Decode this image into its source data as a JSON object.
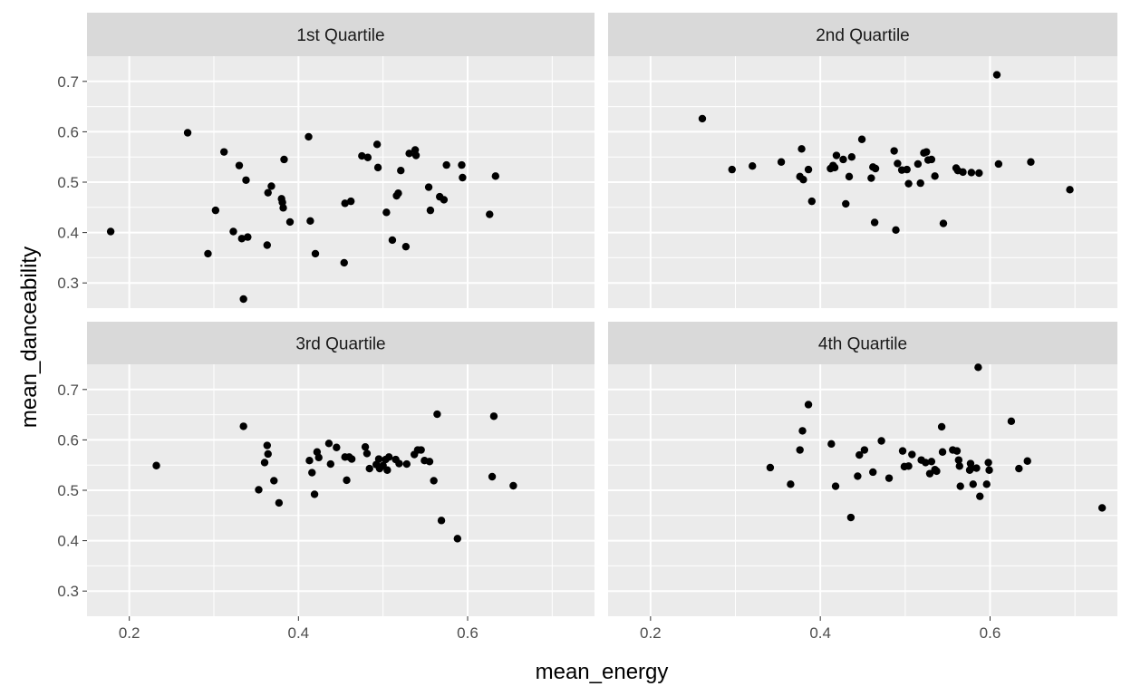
{
  "chart_data": {
    "type": "scatter",
    "facet_layout": "2x2",
    "xlabel": "mean_energy",
    "ylabel": "mean_danceability",
    "xlim": [
      0.15,
      0.75
    ],
    "ylim": [
      0.25,
      0.75
    ],
    "x_ticks": [
      0.2,
      0.4,
      0.6
    ],
    "y_ticks": [
      0.3,
      0.4,
      0.5,
      0.6,
      0.7
    ],
    "grid": true,
    "point_color": "#000000",
    "panel_background": "#ebebeb",
    "strip_background": "#d9d9d9",
    "panels": [
      {
        "title": "1st Quartile",
        "points": [
          [
            0.178,
            0.402
          ],
          [
            0.269,
            0.598
          ],
          [
            0.293,
            0.358
          ],
          [
            0.302,
            0.444
          ],
          [
            0.312,
            0.56
          ],
          [
            0.323,
            0.402
          ],
          [
            0.33,
            0.533
          ],
          [
            0.333,
            0.388
          ],
          [
            0.335,
            0.268
          ],
          [
            0.338,
            0.504
          ],
          [
            0.34,
            0.391
          ],
          [
            0.363,
            0.375
          ],
          [
            0.364,
            0.479
          ],
          [
            0.368,
            0.492
          ],
          [
            0.38,
            0.467
          ],
          [
            0.381,
            0.46
          ],
          [
            0.382,
            0.449
          ],
          [
            0.383,
            0.545
          ],
          [
            0.39,
            0.421
          ],
          [
            0.412,
            0.59
          ],
          [
            0.414,
            0.423
          ],
          [
            0.42,
            0.358
          ],
          [
            0.454,
            0.34
          ],
          [
            0.455,
            0.458
          ],
          [
            0.462,
            0.462
          ],
          [
            0.475,
            0.552
          ],
          [
            0.482,
            0.549
          ],
          [
            0.493,
            0.575
          ],
          [
            0.494,
            0.529
          ],
          [
            0.504,
            0.44
          ],
          [
            0.511,
            0.385
          ],
          [
            0.516,
            0.473
          ],
          [
            0.518,
            0.478
          ],
          [
            0.521,
            0.523
          ],
          [
            0.527,
            0.372
          ],
          [
            0.531,
            0.557
          ],
          [
            0.538,
            0.564
          ],
          [
            0.539,
            0.553
          ],
          [
            0.554,
            0.49
          ],
          [
            0.556,
            0.444
          ],
          [
            0.567,
            0.471
          ],
          [
            0.572,
            0.465
          ],
          [
            0.575,
            0.534
          ],
          [
            0.593,
            0.534
          ],
          [
            0.594,
            0.509
          ],
          [
            0.626,
            0.436
          ],
          [
            0.633,
            0.512
          ]
        ]
      },
      {
        "title": "2nd Quartile",
        "points": [
          [
            0.261,
            0.626
          ],
          [
            0.296,
            0.525
          ],
          [
            0.32,
            0.532
          ],
          [
            0.354,
            0.54
          ],
          [
            0.376,
            0.511
          ],
          [
            0.378,
            0.566
          ],
          [
            0.38,
            0.505
          ],
          [
            0.386,
            0.525
          ],
          [
            0.39,
            0.462
          ],
          [
            0.412,
            0.527
          ],
          [
            0.415,
            0.533
          ],
          [
            0.417,
            0.529
          ],
          [
            0.419,
            0.553
          ],
          [
            0.427,
            0.545
          ],
          [
            0.43,
            0.457
          ],
          [
            0.434,
            0.511
          ],
          [
            0.437,
            0.55
          ],
          [
            0.449,
            0.585
          ],
          [
            0.46,
            0.508
          ],
          [
            0.462,
            0.53
          ],
          [
            0.464,
            0.42
          ],
          [
            0.465,
            0.527
          ],
          [
            0.487,
            0.562
          ],
          [
            0.489,
            0.405
          ],
          [
            0.491,
            0.537
          ],
          [
            0.496,
            0.524
          ],
          [
            0.502,
            0.525
          ],
          [
            0.504,
            0.497
          ],
          [
            0.515,
            0.536
          ],
          [
            0.518,
            0.498
          ],
          [
            0.522,
            0.558
          ],
          [
            0.525,
            0.56
          ],
          [
            0.527,
            0.544
          ],
          [
            0.531,
            0.545
          ],
          [
            0.535,
            0.512
          ],
          [
            0.545,
            0.418
          ],
          [
            0.56,
            0.528
          ],
          [
            0.562,
            0.523
          ],
          [
            0.568,
            0.52
          ],
          [
            0.578,
            0.519
          ],
          [
            0.587,
            0.518
          ],
          [
            0.608,
            0.713
          ],
          [
            0.61,
            0.536
          ],
          [
            0.648,
            0.54
          ],
          [
            0.694,
            0.485
          ]
        ]
      },
      {
        "title": "3rd Quartile",
        "points": [
          [
            0.232,
            0.549
          ],
          [
            0.335,
            0.627
          ],
          [
            0.353,
            0.501
          ],
          [
            0.36,
            0.555
          ],
          [
            0.363,
            0.589
          ],
          [
            0.364,
            0.572
          ],
          [
            0.371,
            0.519
          ],
          [
            0.377,
            0.475
          ],
          [
            0.413,
            0.559
          ],
          [
            0.416,
            0.535
          ],
          [
            0.419,
            0.492
          ],
          [
            0.422,
            0.576
          ],
          [
            0.424,
            0.565
          ],
          [
            0.436,
            0.593
          ],
          [
            0.438,
            0.552
          ],
          [
            0.445,
            0.585
          ],
          [
            0.455,
            0.566
          ],
          [
            0.457,
            0.52
          ],
          [
            0.46,
            0.566
          ],
          [
            0.463,
            0.562
          ],
          [
            0.479,
            0.586
          ],
          [
            0.481,
            0.573
          ],
          [
            0.484,
            0.543
          ],
          [
            0.492,
            0.551
          ],
          [
            0.495,
            0.562
          ],
          [
            0.496,
            0.543
          ],
          [
            0.5,
            0.549
          ],
          [
            0.503,
            0.561
          ],
          [
            0.505,
            0.54
          ],
          [
            0.507,
            0.566
          ],
          [
            0.515,
            0.561
          ],
          [
            0.519,
            0.553
          ],
          [
            0.528,
            0.552
          ],
          [
            0.537,
            0.571
          ],
          [
            0.541,
            0.58
          ],
          [
            0.545,
            0.58
          ],
          [
            0.549,
            0.559
          ],
          [
            0.555,
            0.557
          ],
          [
            0.56,
            0.519
          ],
          [
            0.564,
            0.651
          ],
          [
            0.569,
            0.44
          ],
          [
            0.588,
            0.404
          ],
          [
            0.629,
            0.527
          ],
          [
            0.631,
            0.647
          ],
          [
            0.654,
            0.509
          ]
        ]
      },
      {
        "title": "4th Quartile",
        "points": [
          [
            0.341,
            0.545
          ],
          [
            0.365,
            0.512
          ],
          [
            0.376,
            0.58
          ],
          [
            0.379,
            0.618
          ],
          [
            0.386,
            0.67
          ],
          [
            0.413,
            0.592
          ],
          [
            0.418,
            0.508
          ],
          [
            0.436,
            0.446
          ],
          [
            0.444,
            0.528
          ],
          [
            0.446,
            0.57
          ],
          [
            0.452,
            0.58
          ],
          [
            0.462,
            0.536
          ],
          [
            0.472,
            0.598
          ],
          [
            0.481,
            0.524
          ],
          [
            0.497,
            0.578
          ],
          [
            0.499,
            0.547
          ],
          [
            0.504,
            0.548
          ],
          [
            0.508,
            0.571
          ],
          [
            0.519,
            0.56
          ],
          [
            0.524,
            0.555
          ],
          [
            0.529,
            0.533
          ],
          [
            0.531,
            0.557
          ],
          [
            0.535,
            0.541
          ],
          [
            0.537,
            0.538
          ],
          [
            0.543,
            0.626
          ],
          [
            0.544,
            0.576
          ],
          [
            0.556,
            0.58
          ],
          [
            0.561,
            0.578
          ],
          [
            0.563,
            0.56
          ],
          [
            0.564,
            0.548
          ],
          [
            0.565,
            0.508
          ],
          [
            0.576,
            0.54
          ],
          [
            0.577,
            0.553
          ],
          [
            0.578,
            0.544
          ],
          [
            0.58,
            0.512
          ],
          [
            0.584,
            0.544
          ],
          [
            0.586,
            0.744
          ],
          [
            0.588,
            0.488
          ],
          [
            0.596,
            0.512
          ],
          [
            0.598,
            0.555
          ],
          [
            0.599,
            0.54
          ],
          [
            0.625,
            0.637
          ],
          [
            0.634,
            0.543
          ],
          [
            0.644,
            0.558
          ],
          [
            0.732,
            0.465
          ]
        ]
      }
    ]
  }
}
